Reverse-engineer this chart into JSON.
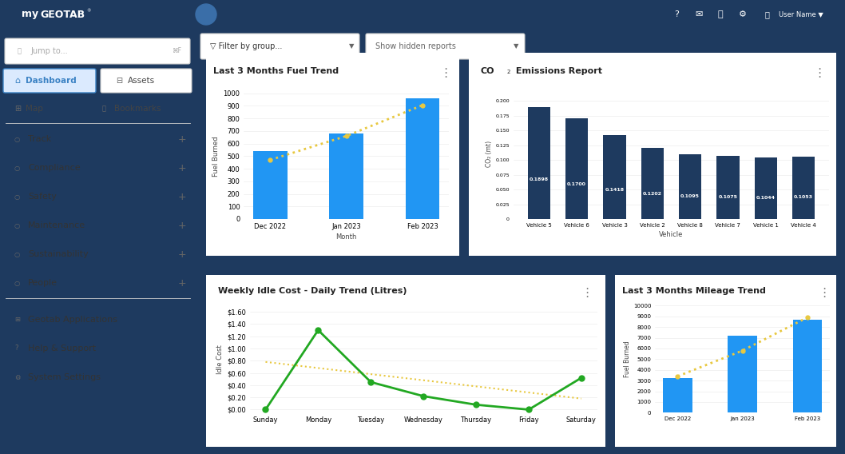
{
  "bg_color": "#1e3a5f",
  "sidebar_bg": "#f2f5f8",
  "content_bg": "#e5eaf0",
  "card_bg": "#ffffff",
  "nav_items": [
    "Track",
    "Compliance",
    "Safety",
    "Maintenance",
    "Sustainability",
    "People"
  ],
  "bottom_nav": [
    "Geotab Applications",
    "Help & Support",
    "System Settings"
  ],
  "fuel_trend": {
    "title": "Last 3 Months Fuel Trend",
    "months": [
      "Dec 2022",
      "Jan 2023",
      "Feb 2023"
    ],
    "values": [
      540,
      680,
      960
    ],
    "trend_values": [
      470,
      660,
      905
    ],
    "bar_color": "#2196f3",
    "trend_color": "#e8c840",
    "ylabel": "Fuel Burned",
    "xlabel": "Month",
    "ylim": [
      0,
      1000
    ],
    "yticks": [
      0,
      100,
      200,
      300,
      400,
      500,
      600,
      700,
      800,
      900,
      1000
    ]
  },
  "co2_report": {
    "title": "CO2 Emissions Report",
    "vehicles": [
      "Vehicle 5",
      "Vehicle 6",
      "Vehicle 3",
      "Vehicle 2",
      "Vehicle 8",
      "Vehicle 7",
      "Vehicle 1",
      "Vehicle 4"
    ],
    "values": [
      0.1898,
      0.17,
      0.1418,
      0.1202,
      0.1095,
      0.1075,
      0.1044,
      0.1053
    ],
    "bar_color": "#1e3a5f",
    "ylabel": "CO₂ (mt)",
    "xlabel": "Vehicle",
    "ylim": [
      0,
      0.22
    ]
  },
  "idle_cost": {
    "title": "Weekly Idle Cost - Daily Trend (Litres)",
    "days": [
      "Sunday",
      "Monday",
      "Tuesday",
      "Wednesday",
      "Thursday",
      "Friday",
      "Saturday"
    ],
    "values": [
      0.0,
      1.3,
      0.45,
      0.22,
      0.08,
      0.0,
      0.52
    ],
    "trend_values": [
      0.78,
      0.68,
      0.58,
      0.48,
      0.38,
      0.28,
      0.18
    ],
    "line_color": "#22a822",
    "trend_color": "#e8c840",
    "ylabel": "Idle Cost",
    "ytick_labels": [
      "$0.00",
      "$0.20",
      "$0.40",
      "$0.60",
      "$0.80",
      "$1.00",
      "$1.20",
      "$1.40",
      "$1.60"
    ],
    "ytick_values": [
      0.0,
      0.2,
      0.4,
      0.6,
      0.8,
      1.0,
      1.2,
      1.4,
      1.6
    ]
  },
  "mileage_trend": {
    "title": "Last 3 Months Mileage Trend",
    "months": [
      "Dec 2022",
      "Jan 2023",
      "Feb 2023"
    ],
    "values": [
      3200,
      7200,
      8700
    ],
    "trend_values": [
      3400,
      5800,
      8900
    ],
    "bar_color": "#2196f3",
    "trend_color": "#e8c840",
    "ylabel": "Fuel Burned",
    "ylim": [
      0,
      10000
    ],
    "yticks": [
      0,
      1000,
      2000,
      3000,
      4000,
      5000,
      6000,
      7000,
      8000,
      9000,
      10000
    ]
  }
}
